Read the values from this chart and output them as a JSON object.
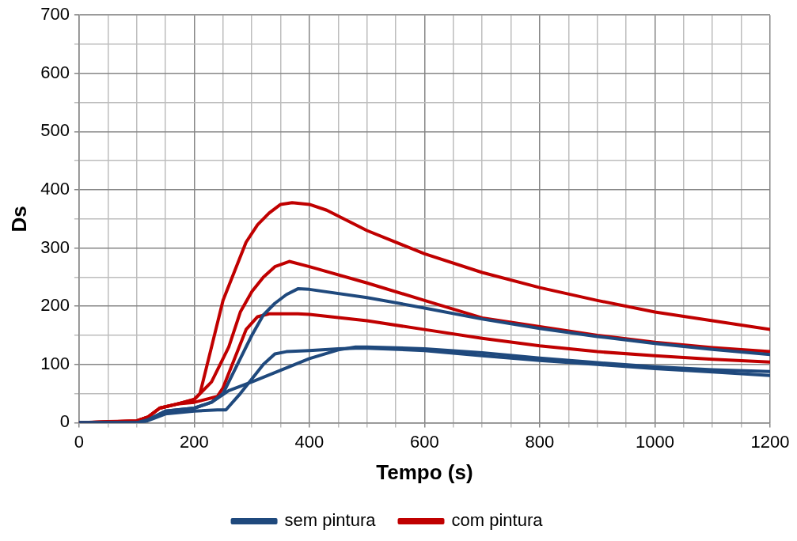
{
  "chart_data": {
    "type": "line",
    "xlabel": "Tempo (s)",
    "ylabel": "Ds",
    "xlim": [
      0,
      1200
    ],
    "ylim": [
      0,
      700
    ],
    "xticks": [
      0,
      {
        "value": 50,
        "label": null
      },
      {
        "value": 100,
        "label": null
      },
      {
        "value": 150,
        "label": null
      },
      200,
      {
        "value": 250,
        "label": null
      },
      {
        "value": 300,
        "label": null
      },
      {
        "value": 350,
        "label": null
      },
      400,
      {
        "value": 450,
        "label": null
      },
      {
        "value": 500,
        "label": null
      },
      {
        "value": 550,
        "label": null
      },
      600,
      {
        "value": 650,
        "label": null
      },
      {
        "value": 700,
        "label": null
      },
      {
        "value": 750,
        "label": null
      },
      800,
      {
        "value": 850,
        "label": null
      },
      {
        "value": 900,
        "label": null
      },
      {
        "value": 950,
        "label": null
      },
      1000,
      {
        "value": 1050,
        "label": null
      },
      {
        "value": 1100,
        "label": null
      },
      {
        "value": 1150,
        "label": null
      },
      1200
    ],
    "yticks": [
      0,
      {
        "value": 50,
        "label": null
      },
      100,
      {
        "value": 150,
        "label": null
      },
      200,
      {
        "value": 250,
        "label": null
      },
      300,
      {
        "value": 350,
        "label": null
      },
      400,
      {
        "value": 450,
        "label": null
      },
      500,
      {
        "value": 550,
        "label": null
      },
      600,
      {
        "value": 650,
        "label": null
      },
      700
    ],
    "grid": true,
    "legend": "bottom",
    "marker": "none",
    "line_style": "solid",
    "series": [
      {
        "name": "sem pintura",
        "color": "#1f497d",
        "x": [
          0,
          100,
          120,
          150,
          200,
          230,
          250,
          280,
          300,
          320,
          340,
          360,
          380,
          400,
          500,
          600,
          700,
          800,
          900,
          1000,
          1100,
          1200
        ],
        "values": [
          0,
          0,
          5,
          20,
          25,
          35,
          50,
          110,
          150,
          185,
          205,
          220,
          230,
          229,
          215,
          197,
          178,
          162,
          148,
          136,
          126,
          117
        ]
      },
      {
        "color": "#1f497d",
        "x": [
          0,
          110,
          150,
          200,
          240,
          255,
          280,
          300,
          320,
          340,
          360,
          400,
          450,
          480,
          500,
          600,
          700,
          800,
          900,
          1000,
          1100,
          1200
        ],
        "values": [
          0,
          0,
          15,
          20,
          22,
          22,
          50,
          75,
          100,
          118,
          122,
          124,
          127,
          128,
          128,
          124,
          115,
          107,
          100,
          93,
          87,
          81
        ]
      },
      {
        "color": "#1f497d",
        "x": [
          0,
          110,
          150,
          200,
          230,
          260,
          300,
          350,
          400,
          450,
          480,
          500,
          600,
          700,
          800,
          900,
          1000,
          1100,
          1200
        ],
        "values": [
          0,
          0,
          20,
          25,
          35,
          55,
          70,
          90,
          110,
          125,
          130,
          130,
          127,
          120,
          111,
          103,
          96,
          91,
          88
        ]
      },
      {
        "name": "com pintura",
        "color": "#c00000",
        "x": [
          0,
          50,
          100,
          120,
          140,
          170,
          200,
          210,
          230,
          250,
          270,
          290,
          310,
          330,
          350,
          370,
          400,
          430,
          500,
          600,
          700,
          800,
          900,
          1000,
          1100,
          1200
        ],
        "values": [
          0,
          2,
          3,
          10,
          25,
          32,
          40,
          50,
          130,
          210,
          260,
          310,
          340,
          360,
          375,
          378,
          375,
          365,
          330,
          290,
          258,
          232,
          210,
          190,
          175,
          160
        ]
      },
      {
        "color": "#c00000",
        "x": [
          0,
          100,
          120,
          140,
          170,
          200,
          230,
          260,
          280,
          300,
          320,
          340,
          365,
          400,
          500,
          600,
          700,
          800,
          900,
          1000,
          1100,
          1200
        ],
        "values": [
          0,
          3,
          10,
          25,
          32,
          40,
          70,
          130,
          190,
          225,
          250,
          268,
          277,
          268,
          240,
          210,
          180,
          165,
          150,
          138,
          129,
          122
        ]
      },
      {
        "color": "#c00000",
        "x": [
          0,
          100,
          120,
          140,
          170,
          200,
          240,
          250,
          270,
          290,
          310,
          330,
          380,
          400,
          500,
          600,
          700,
          800,
          900,
          1000,
          1100,
          1200
        ],
        "values": [
          0,
          3,
          10,
          25,
          32,
          35,
          45,
          60,
          110,
          160,
          182,
          187,
          187,
          186,
          175,
          160,
          145,
          132,
          122,
          115,
          109,
          104
        ]
      }
    ]
  }
}
